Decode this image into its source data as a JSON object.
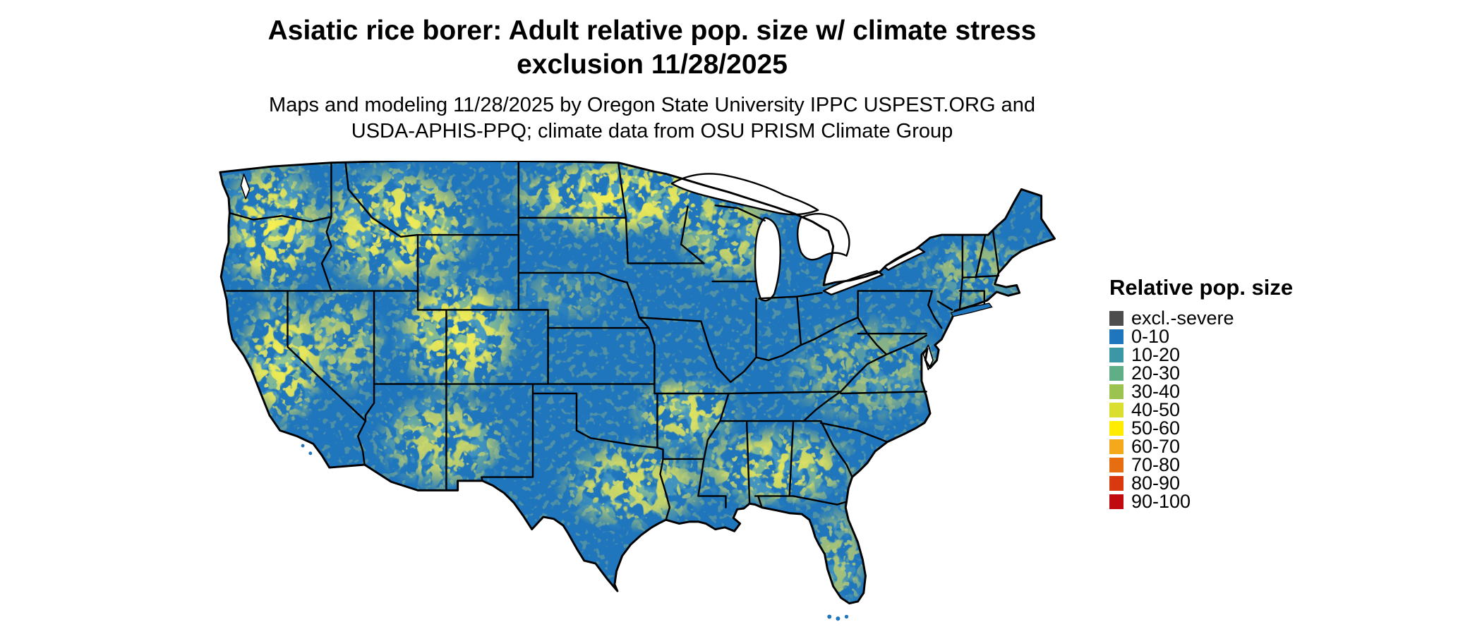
{
  "title": {
    "line1": "Asiatic rice borer: Adult relative pop. size w/ climate stress",
    "line2": "exclusion 11/28/2025"
  },
  "subtitle": {
    "line1": "Maps and modeling 11/28/2025 by Oregon State University IPPC USPEST.ORG and",
    "line2": "USDA-APHIS-PPQ; climate data from OSU PRISM Climate Group"
  },
  "map": {
    "region": "Contiguous United States",
    "base_color": "#1f76bd",
    "border_color": "#000000",
    "water_color": "#ffffff"
  },
  "legend": {
    "title": "Relative pop. size",
    "items": [
      {
        "label": "excl.-severe",
        "color": "#4d4d4d"
      },
      {
        "label": "0-10",
        "color": "#1f76bd"
      },
      {
        "label": "10-20",
        "color": "#3b96a5"
      },
      {
        "label": "20-30",
        "color": "#5fae86"
      },
      {
        "label": "30-40",
        "color": "#9cc34f"
      },
      {
        "label": "40-50",
        "color": "#dade2e"
      },
      {
        "label": "50-60",
        "color": "#ffec00"
      },
      {
        "label": "60-70",
        "color": "#f4a81c"
      },
      {
        "label": "70-80",
        "color": "#e66e11"
      },
      {
        "label": "80-90",
        "color": "#d8390e"
      },
      {
        "label": "90-100",
        "color": "#c00a10"
      }
    ]
  }
}
